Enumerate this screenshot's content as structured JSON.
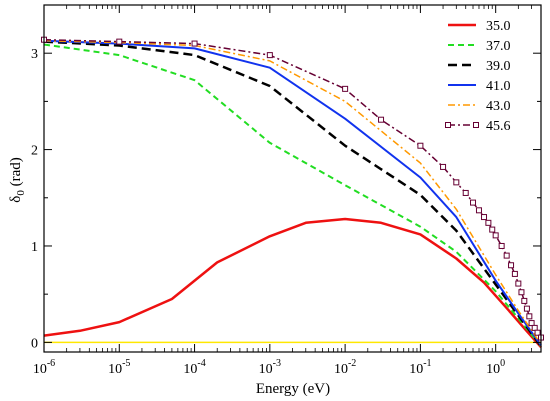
{
  "chart_data": {
    "type": "line",
    "xlabel": "Energy (eV)",
    "ylabel": "δ",
    "ylabel_sub": "0",
    "ylabel_unit": " (rad)",
    "x_scale": "log",
    "xlim": [
      1e-06,
      4
    ],
    "ylim": [
      -0.1,
      3.5
    ],
    "grid": false,
    "legend": "top-right",
    "x_ticks": [
      {
        "base": "10",
        "exp": "-6"
      },
      {
        "base": "10",
        "exp": "-5"
      },
      {
        "base": "10",
        "exp": "-4"
      },
      {
        "base": "10",
        "exp": "-3"
      },
      {
        "base": "10",
        "exp": "-2"
      },
      {
        "base": "10",
        "exp": "-1"
      },
      {
        "base": "10",
        "exp": "0"
      }
    ],
    "y_ticks": [
      "0",
      "1",
      "2",
      "3"
    ],
    "reference_line": {
      "y": 0,
      "color": "#ffe800"
    },
    "series": [
      {
        "name": "35.0",
        "color": "#ee1111",
        "dash": "",
        "width": 2.5,
        "marker": "",
        "x": [
          1e-06,
          3e-06,
          1e-05,
          5e-05,
          0.0002,
          0.001,
          0.003,
          0.01,
          0.03,
          0.1,
          0.3,
          0.7,
          1.5,
          2.5,
          4
        ],
        "y": [
          0.07,
          0.12,
          0.21,
          0.45,
          0.83,
          1.1,
          1.24,
          1.28,
          1.24,
          1.12,
          0.87,
          0.62,
          0.33,
          0.13,
          -0.05
        ]
      },
      {
        "name": "37.0",
        "color": "#22dd22",
        "dash": "6,4",
        "width": 2,
        "marker": "",
        "x": [
          1e-06,
          1e-05,
          0.0001,
          0.001,
          0.01,
          0.1,
          0.3,
          1,
          2,
          4
        ],
        "y": [
          3.09,
          2.98,
          2.72,
          2.07,
          1.63,
          1.2,
          0.94,
          0.53,
          0.25,
          -0.04
        ]
      },
      {
        "name": "39.0",
        "color": "#000000",
        "dash": "9,5",
        "width": 2.5,
        "marker": "",
        "x": [
          1e-06,
          1e-05,
          0.0001,
          0.001,
          0.01,
          0.1,
          0.3,
          1,
          2,
          4
        ],
        "y": [
          3.12,
          3.08,
          2.98,
          2.66,
          2.04,
          1.53,
          1.16,
          0.6,
          0.28,
          -0.04
        ]
      },
      {
        "name": "41.0",
        "color": "#1133ee",
        "dash": "",
        "width": 2,
        "marker": "",
        "x": [
          1e-06,
          1e-05,
          0.0001,
          0.001,
          0.01,
          0.1,
          0.3,
          1,
          2,
          4
        ],
        "y": [
          3.13,
          3.1,
          3.05,
          2.85,
          2.32,
          1.71,
          1.3,
          0.64,
          0.3,
          -0.03
        ]
      },
      {
        "name": "43.0",
        "color": "#ff9900",
        "dash": "7,3,2,3",
        "width": 1.5,
        "marker": "",
        "x": [
          1e-06,
          1e-05,
          0.0001,
          0.001,
          0.01,
          0.1,
          0.3,
          1,
          2,
          4
        ],
        "y": [
          3.13,
          3.11,
          3.08,
          2.92,
          2.5,
          1.86,
          1.38,
          0.7,
          0.33,
          -0.02
        ]
      },
      {
        "name": "45.6",
        "color": "#660033",
        "dash": "7,3,2,3",
        "width": 1.5,
        "marker": "square",
        "x": [
          1e-06,
          1e-05,
          0.0001,
          0.001,
          0.01,
          0.03,
          0.1,
          0.2,
          0.3,
          0.4,
          0.5,
          0.6,
          0.7,
          0.8,
          0.9,
          1,
          1.2,
          1.4,
          1.6,
          1.8,
          2,
          2.2,
          2.4,
          2.6,
          2.8,
          3,
          3.3,
          3.6,
          4
        ],
        "y": [
          3.14,
          3.12,
          3.1,
          2.98,
          2.63,
          2.31,
          2.04,
          1.82,
          1.66,
          1.55,
          1.45,
          1.37,
          1.3,
          1.24,
          1.17,
          1.11,
          1.0,
          0.9,
          0.8,
          0.71,
          0.61,
          0.52,
          0.43,
          0.35,
          0.27,
          0.2,
          0.15,
          0.1,
          0.05
        ]
      }
    ]
  }
}
